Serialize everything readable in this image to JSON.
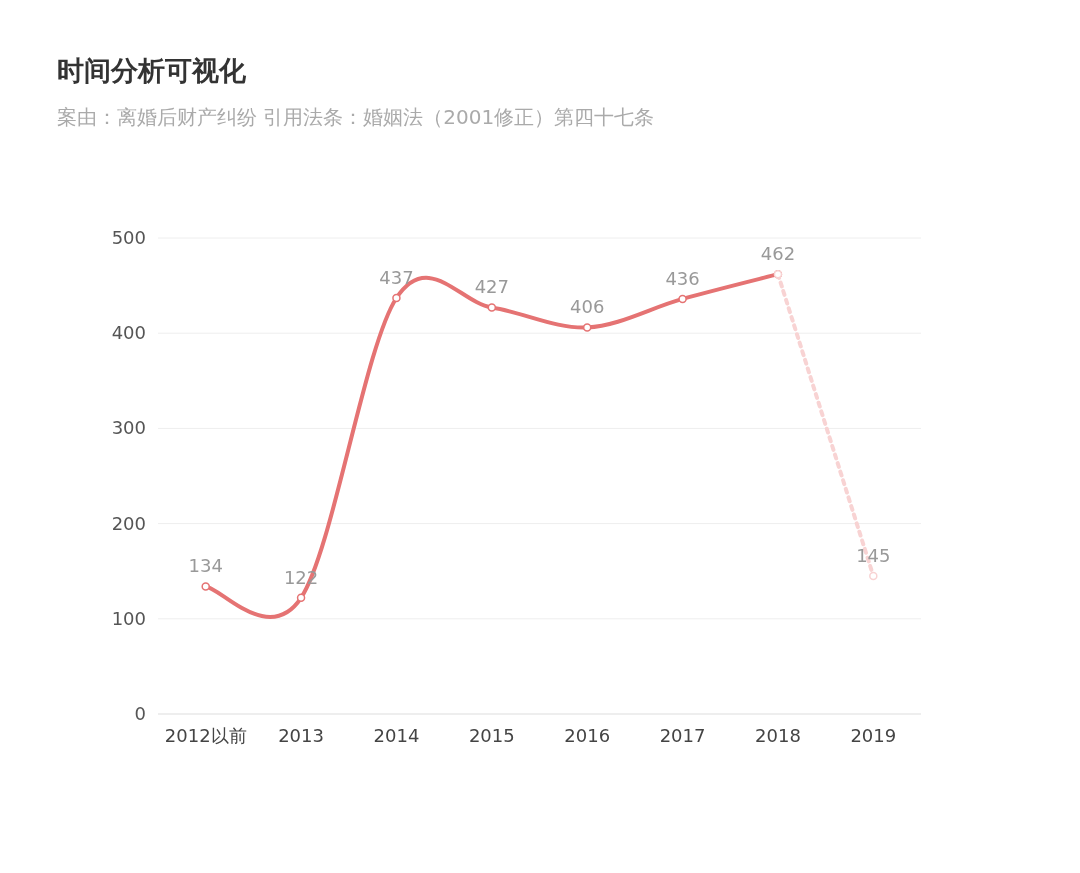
{
  "chart_data": {
    "type": "line",
    "title": "时间分析可视化",
    "subtitle": "案由：离婚后财产纠纷  引用法条：婚姻法（2001修正）第四十七条",
    "categories": [
      "2012以前",
      "2013",
      "2014",
      "2015",
      "2016",
      "2017",
      "2018",
      "2019"
    ],
    "series": [
      {
        "color": "#e57373",
        "line_style": "solid",
        "values": [
          134,
          122,
          437,
          427,
          406,
          436,
          462,
          null
        ],
        "value_labels": [
          "134",
          "122",
          "437",
          "427",
          "406",
          "436",
          "462",
          null
        ]
      },
      {
        "color": "#f8d3d3",
        "line_style": "dotted",
        "values": [
          null,
          null,
          null,
          null,
          null,
          null,
          462,
          145
        ],
        "value_labels": [
          null,
          null,
          null,
          null,
          null,
          null,
          null,
          "145"
        ]
      }
    ],
    "ylim": [
      0,
      500
    ],
    "yticks": [
      0,
      100,
      200,
      300,
      400,
      500
    ],
    "grid": "y",
    "marker": "circle"
  }
}
